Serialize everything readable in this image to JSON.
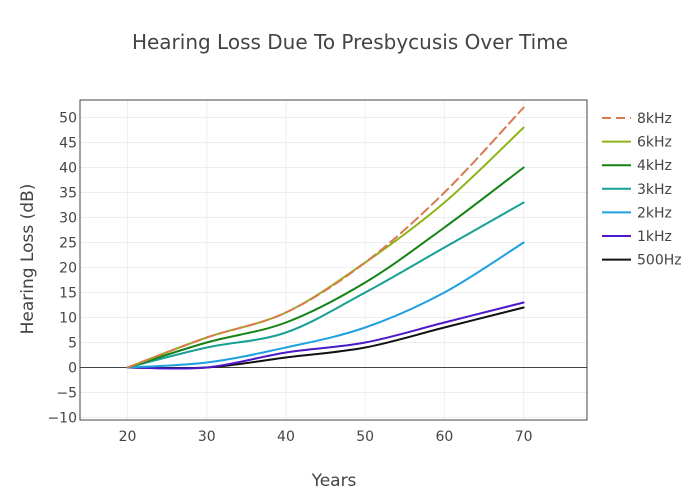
{
  "chart_data": {
    "type": "line",
    "title": "Hearing Loss Due To Presbycusis Over Time",
    "xlabel": "Years",
    "ylabel": "Hearing Loss (dB)",
    "xlim": [
      14,
      78
    ],
    "ylim": [
      -10.5,
      53.5
    ],
    "xticks": [
      20,
      30,
      40,
      50,
      60,
      70
    ],
    "yticks": [
      -10,
      -5,
      0,
      5,
      10,
      15,
      20,
      25,
      30,
      35,
      40,
      45,
      50
    ],
    "grid": true,
    "legend_position": "right",
    "x": [
      20,
      30,
      40,
      50,
      60,
      70
    ],
    "series": [
      {
        "name": "8kHz",
        "values": [
          0,
          6,
          11,
          21,
          35,
          52
        ],
        "color": "#d97a50",
        "dash": true
      },
      {
        "name": "6kHz",
        "values": [
          0,
          6,
          11,
          21,
          33,
          48
        ],
        "color": "#8cb415",
        "dash": false
      },
      {
        "name": "4kHz",
        "values": [
          0,
          5,
          9,
          17,
          28,
          40
        ],
        "color": "#148214",
        "dash": false
      },
      {
        "name": "3kHz",
        "values": [
          0,
          4,
          7,
          15,
          24,
          33
        ],
        "color": "#17a094",
        "dash": false
      },
      {
        "name": "2kHz",
        "values": [
          0,
          1,
          4,
          8,
          15,
          25
        ],
        "color": "#1ea0e0",
        "dash": false
      },
      {
        "name": "1kHz",
        "values": [
          0,
          0,
          3,
          5,
          9,
          13
        ],
        "color": "#4b19c8",
        "dash": false
      },
      {
        "name": "500Hz",
        "values": [
          0,
          0,
          2,
          4,
          8,
          12
        ],
        "color": "#111111",
        "dash": false
      }
    ]
  }
}
